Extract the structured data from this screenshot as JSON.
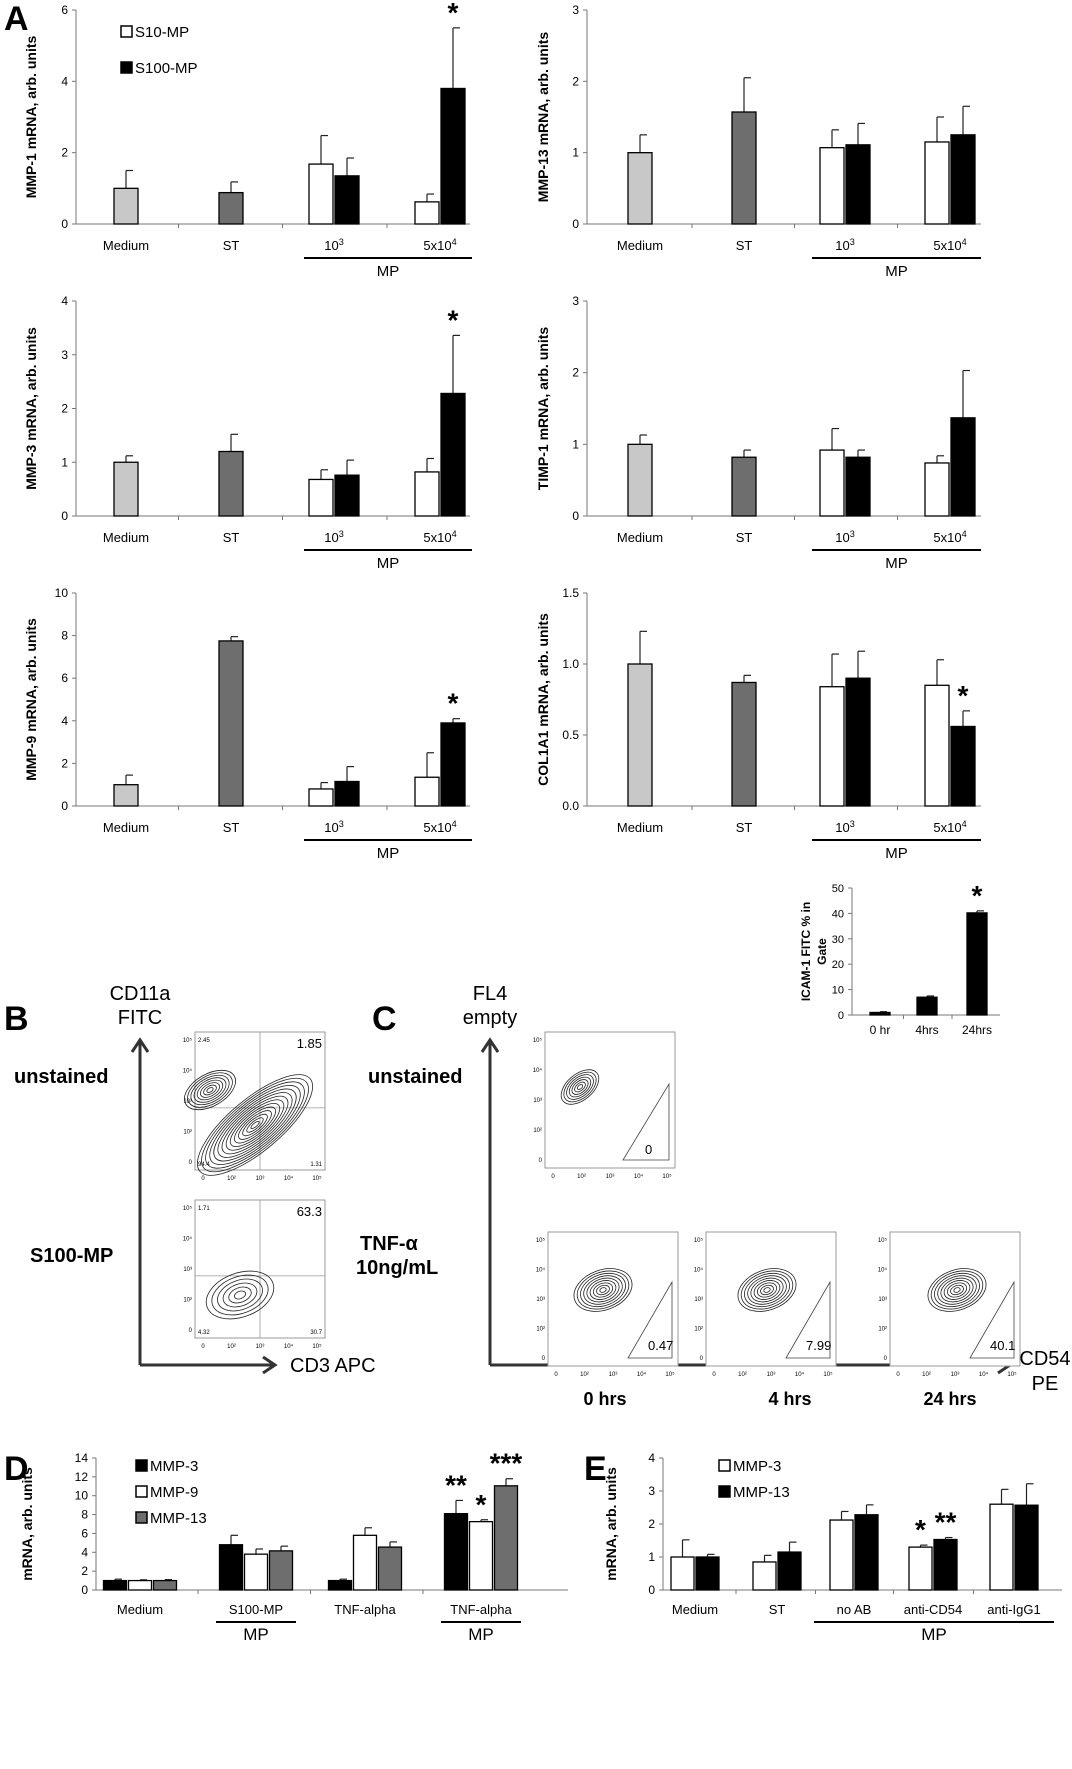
{
  "panel_letters": {
    "A": "A",
    "B": "B",
    "C": "C",
    "D": "D",
    "E": "E"
  },
  "colors": {
    "medium": "#c8c8c8",
    "st": "#6e6e6e",
    "s10": "#ffffff",
    "s100": "#000000",
    "mmp13": "#6e6e6e"
  },
  "chart_data": [
    {
      "id": "A1",
      "type": "bar",
      "ylabel": "MMP-1 mRNA, arb. units",
      "ylim": [
        0,
        6
      ],
      "yticks": [
        "0",
        "2",
        "4",
        "6"
      ],
      "groups": [
        "Medium",
        "ST",
        "10^3",
        "5x10^4"
      ],
      "group_underline": "MP",
      "legend": [
        {
          "name": "S10-MP",
          "color": "#ffffff"
        },
        {
          "name": "S100-MP",
          "color": "#000000"
        }
      ],
      "bars": [
        {
          "group": 0,
          "value": 1.0,
          "error": 0.5,
          "color": "#c8c8c8"
        },
        {
          "group": 1,
          "value": 0.88,
          "error": 0.3,
          "color": "#6e6e6e"
        },
        {
          "group": 2,
          "value": 1.68,
          "error": 0.8,
          "color": "#ffffff",
          "series": "S10-MP"
        },
        {
          "group": 2,
          "value": 1.35,
          "error": 0.5,
          "color": "#000000",
          "series": "S100-MP"
        },
        {
          "group": 3,
          "value": 0.62,
          "error": 0.22,
          "color": "#ffffff",
          "series": "S10-MP"
        },
        {
          "group": 3,
          "value": 3.8,
          "error": 1.7,
          "color": "#000000",
          "series": "S100-MP",
          "star": "*"
        }
      ]
    },
    {
      "id": "A2",
      "type": "bar",
      "ylabel": "MMP-13 mRNA, arb. units",
      "ylim": [
        0,
        3
      ],
      "yticks": [
        "0",
        "1",
        "2",
        "3"
      ],
      "groups": [
        "Medium",
        "ST",
        "10^3",
        "5x10^4"
      ],
      "group_underline": "MP",
      "bars": [
        {
          "group": 0,
          "value": 1.0,
          "error": 0.25,
          "color": "#c8c8c8"
        },
        {
          "group": 1,
          "value": 1.57,
          "error": 0.48,
          "color": "#6e6e6e"
        },
        {
          "group": 2,
          "value": 1.07,
          "error": 0.25,
          "color": "#ffffff"
        },
        {
          "group": 2,
          "value": 1.11,
          "error": 0.3,
          "color": "#000000"
        },
        {
          "group": 3,
          "value": 1.15,
          "error": 0.35,
          "color": "#ffffff"
        },
        {
          "group": 3,
          "value": 1.25,
          "error": 0.4,
          "color": "#000000"
        }
      ]
    },
    {
      "id": "A3",
      "type": "bar",
      "ylabel": "MMP-3 mRNA, arb. units",
      "ylim": [
        0,
        4
      ],
      "yticks": [
        "0",
        "1",
        "2",
        "3",
        "4"
      ],
      "groups": [
        "Medium",
        "ST",
        "10^3",
        "5x10^4"
      ],
      "group_underline": "MP",
      "bars": [
        {
          "group": 0,
          "value": 1.0,
          "error": 0.12,
          "color": "#c8c8c8"
        },
        {
          "group": 1,
          "value": 1.2,
          "error": 0.32,
          "color": "#6e6e6e"
        },
        {
          "group": 2,
          "value": 0.68,
          "error": 0.18,
          "color": "#ffffff"
        },
        {
          "group": 2,
          "value": 0.76,
          "error": 0.28,
          "color": "#000000"
        },
        {
          "group": 3,
          "value": 0.82,
          "error": 0.25,
          "color": "#ffffff"
        },
        {
          "group": 3,
          "value": 2.28,
          "error": 1.08,
          "color": "#000000",
          "star": "*"
        }
      ]
    },
    {
      "id": "A4",
      "type": "bar",
      "ylabel": "TIMP-1 mRNA, arb. units",
      "ylim": [
        0,
        3
      ],
      "yticks": [
        "0",
        "1",
        "2",
        "3"
      ],
      "groups": [
        "Medium",
        "ST",
        "10^3",
        "5x10^4"
      ],
      "group_underline": "MP",
      "bars": [
        {
          "group": 0,
          "value": 1.0,
          "error": 0.13,
          "color": "#c8c8c8"
        },
        {
          "group": 1,
          "value": 0.82,
          "error": 0.1,
          "color": "#6e6e6e"
        },
        {
          "group": 2,
          "value": 0.92,
          "error": 0.3,
          "color": "#ffffff"
        },
        {
          "group": 2,
          "value": 0.82,
          "error": 0.1,
          "color": "#000000"
        },
        {
          "group": 3,
          "value": 0.74,
          "error": 0.1,
          "color": "#ffffff"
        },
        {
          "group": 3,
          "value": 1.37,
          "error": 0.66,
          "color": "#000000"
        }
      ]
    },
    {
      "id": "A5",
      "type": "bar",
      "ylabel": "MMP-9 mRNA, arb. units",
      "ylim": [
        0,
        10
      ],
      "yticks": [
        "0",
        "2",
        "4",
        "6",
        "8",
        "10"
      ],
      "groups": [
        "Medium",
        "ST",
        "10^3",
        "5x10^4"
      ],
      "group_underline": "MP",
      "bars": [
        {
          "group": 0,
          "value": 1.0,
          "error": 0.45,
          "color": "#c8c8c8"
        },
        {
          "group": 1,
          "value": 7.75,
          "error": 0.2,
          "color": "#6e6e6e"
        },
        {
          "group": 2,
          "value": 0.8,
          "error": 0.3,
          "color": "#ffffff"
        },
        {
          "group": 2,
          "value": 1.15,
          "error": 0.7,
          "color": "#000000"
        },
        {
          "group": 3,
          "value": 1.35,
          "error": 1.15,
          "color": "#ffffff"
        },
        {
          "group": 3,
          "value": 3.9,
          "error": 0.2,
          "color": "#000000",
          "star": "*"
        }
      ]
    },
    {
      "id": "A6",
      "type": "bar",
      "ylabel": "COL1A1 mRNA, arb. units",
      "ylim": [
        0,
        1.5
      ],
      "yticks": [
        "0.0",
        "0.5",
        "1.0",
        "1.5"
      ],
      "groups": [
        "Medium",
        "ST",
        "10^3",
        "5x10^4"
      ],
      "group_underline": "MP",
      "bars": [
        {
          "group": 0,
          "value": 1.0,
          "error": 0.23,
          "color": "#c8c8c8"
        },
        {
          "group": 1,
          "value": 0.87,
          "error": 0.05,
          "color": "#6e6e6e"
        },
        {
          "group": 2,
          "value": 0.84,
          "error": 0.23,
          "color": "#ffffff"
        },
        {
          "group": 2,
          "value": 0.9,
          "error": 0.19,
          "color": "#000000"
        },
        {
          "group": 3,
          "value": 0.85,
          "error": 0.18,
          "color": "#ffffff"
        },
        {
          "group": 3,
          "value": 0.56,
          "error": 0.11,
          "color": "#000000",
          "star": "*"
        }
      ]
    },
    {
      "id": "C_inset",
      "type": "bar",
      "ylabel": "ICAM-1 FITC % in Gate",
      "ylim": [
        0,
        50
      ],
      "yticks": [
        "0",
        "10",
        "20",
        "30",
        "40",
        "50"
      ],
      "groups": [
        "0 hr",
        "4hrs",
        "24hrs"
      ],
      "bars": [
        {
          "group": 0,
          "value": 1.0,
          "error": 0.3,
          "color": "#000000"
        },
        {
          "group": 1,
          "value": 7.0,
          "error": 0.5,
          "color": "#000000"
        },
        {
          "group": 2,
          "value": 40.2,
          "error": 0.8,
          "color": "#000000",
          "star": "*"
        }
      ]
    },
    {
      "id": "D",
      "type": "bar",
      "ylabel": "mRNA, arb. units",
      "ylim": [
        0,
        14
      ],
      "yticks": [
        "0",
        "2",
        "4",
        "6",
        "8",
        "10",
        "12",
        "14"
      ],
      "groups": [
        "Medium",
        "S100-MP",
        "TNF-alpha",
        "TNF-alpha"
      ],
      "legend": [
        {
          "name": "MMP-3",
          "color": "#000000"
        },
        {
          "name": "MMP-9",
          "color": "#ffffff"
        },
        {
          "name": "MMP-13",
          "color": "#6e6e6e"
        }
      ],
      "underlines": [
        {
          "groups": [
            1
          ],
          "label": "MP"
        },
        {
          "groups": [
            3
          ],
          "label": "MP"
        }
      ],
      "bars": [
        {
          "group": 0,
          "value": 1.0,
          "error": 0.15,
          "color": "#000000"
        },
        {
          "group": 0,
          "value": 1.0,
          "error": 0.08,
          "color": "#ffffff"
        },
        {
          "group": 0,
          "value": 1.0,
          "error": 0.1,
          "color": "#6e6e6e"
        },
        {
          "group": 1,
          "value": 4.8,
          "error": 1.0,
          "color": "#000000"
        },
        {
          "group": 1,
          "value": 3.8,
          "error": 0.55,
          "color": "#ffffff"
        },
        {
          "group": 1,
          "value": 4.15,
          "error": 0.5,
          "color": "#6e6e6e"
        },
        {
          "group": 2,
          "value": 1.0,
          "error": 0.15,
          "color": "#000000"
        },
        {
          "group": 2,
          "value": 5.8,
          "error": 0.8,
          "color": "#ffffff"
        },
        {
          "group": 2,
          "value": 4.55,
          "error": 0.55,
          "color": "#6e6e6e"
        },
        {
          "group": 3,
          "value": 8.1,
          "error": 1.4,
          "color": "#000000",
          "star": "**"
        },
        {
          "group": 3,
          "value": 7.25,
          "error": 0.2,
          "color": "#ffffff",
          "star": "*"
        },
        {
          "group": 3,
          "value": 11.05,
          "error": 0.75,
          "color": "#6e6e6e",
          "star": "***"
        }
      ]
    },
    {
      "id": "E",
      "type": "bar",
      "ylabel": "mRNA, arb. units",
      "ylim": [
        0,
        4
      ],
      "yticks": [
        "0",
        "1",
        "2",
        "3",
        "4"
      ],
      "groups": [
        "Medium",
        "ST",
        "no AB",
        "anti-CD54",
        "anti-IgG1"
      ],
      "legend": [
        {
          "name": "MMP-3",
          "color": "#ffffff"
        },
        {
          "name": "MMP-13",
          "color": "#000000"
        }
      ],
      "underlines": [
        {
          "groups": [
            2,
            3,
            4
          ],
          "label": "MP"
        }
      ],
      "bars": [
        {
          "group": 0,
          "value": 1.0,
          "error": 0.52,
          "color": "#ffffff"
        },
        {
          "group": 0,
          "value": 1.0,
          "error": 0.08,
          "color": "#000000"
        },
        {
          "group": 1,
          "value": 0.85,
          "error": 0.2,
          "color": "#ffffff"
        },
        {
          "group": 1,
          "value": 1.15,
          "error": 0.3,
          "color": "#000000"
        },
        {
          "group": 2,
          "value": 2.12,
          "error": 0.26,
          "color": "#ffffff"
        },
        {
          "group": 2,
          "value": 2.28,
          "error": 0.3,
          "color": "#000000"
        },
        {
          "group": 3,
          "value": 1.3,
          "error": 0.06,
          "color": "#ffffff",
          "star": "*"
        },
        {
          "group": 3,
          "value": 1.53,
          "error": 0.06,
          "color": "#000000",
          "star": "**"
        },
        {
          "group": 4,
          "value": 2.6,
          "error": 0.45,
          "color": "#ffffff"
        },
        {
          "group": 4,
          "value": 2.57,
          "error": 0.65,
          "color": "#000000"
        }
      ]
    }
  ],
  "flow": {
    "B": {
      "yaxis_l1": "CD11a",
      "yaxis_l2": "FITC",
      "xaxis": "CD3 APC",
      "row1": "unstained",
      "row2": "S100-MP",
      "plot1": {
        "ul": "2.45",
        "ur": "1.85",
        "ll": "94.4",
        "lr": "1.31"
      },
      "plot2": {
        "ul": "1.71",
        "ur": "63.3",
        "ll": "4.32",
        "lr": "30.7"
      }
    },
    "C": {
      "yaxis_l1": "FL4",
      "yaxis_l2": "empty",
      "xaxis_l1": "CD54",
      "xaxis_l2": "PE",
      "row1": "unstained",
      "row2_l1": "TNF-α",
      "row2_l2": "10ng/mL",
      "gate_unstained": "0",
      "gates": [
        "0.47",
        "7.99",
        "40.1"
      ],
      "times": [
        "0 hrs",
        "4 hrs",
        "24 hrs"
      ]
    }
  },
  "axis_ticks": {
    "log": [
      "0",
      "10²",
      "10³",
      "10⁴",
      "10⁵"
    ]
  }
}
